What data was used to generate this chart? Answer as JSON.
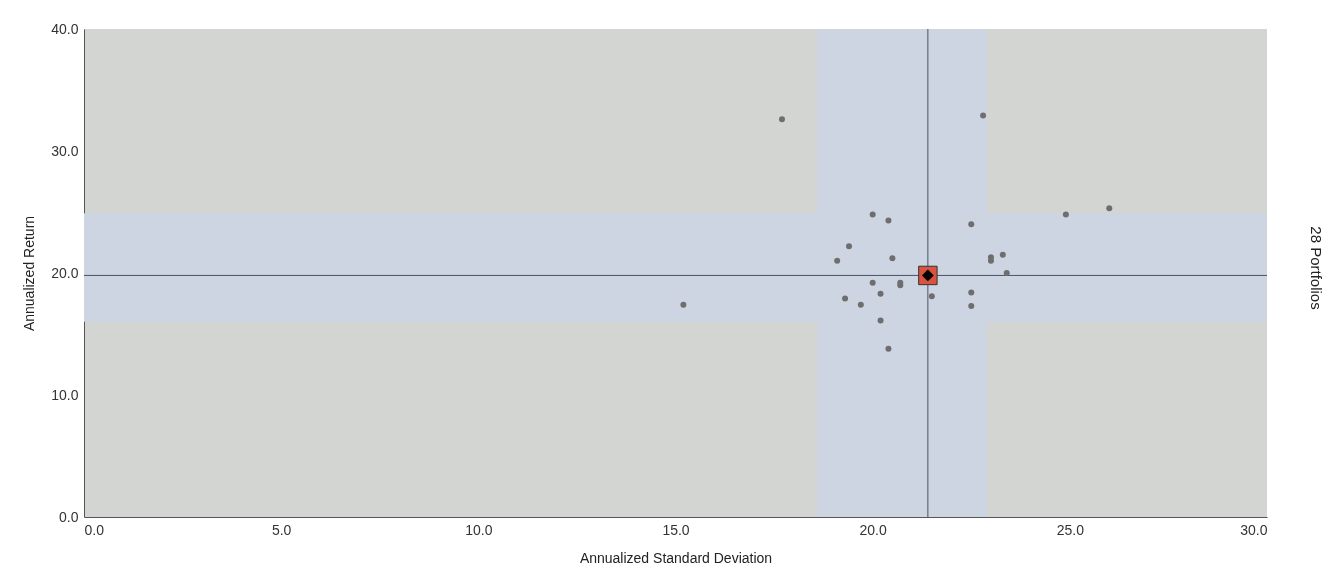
{
  "chart_data": {
    "type": "scatter",
    "xlabel": "Annualized Standard Deviation",
    "ylabel": "Annualized Return",
    "annotations": [
      "28 Portfolios"
    ],
    "xlim": [
      0,
      30
    ],
    "ylim": [
      0,
      40
    ],
    "xticks": [
      {
        "value": 0,
        "label": "0.0"
      },
      {
        "value": 5,
        "label": "5.0"
      },
      {
        "value": 10,
        "label": "10.0"
      },
      {
        "value": 15,
        "label": "15.0"
      },
      {
        "value": 20,
        "label": "20.0"
      },
      {
        "value": 25,
        "label": "25.0"
      },
      {
        "value": 30,
        "label": "30.0"
      }
    ],
    "yticks": [
      {
        "value": 0,
        "label": "0.0"
      },
      {
        "value": 10,
        "label": "10.0"
      },
      {
        "value": 20,
        "label": "20.0"
      },
      {
        "value": 30,
        "label": "30.0"
      },
      {
        "value": 40,
        "label": "40.0"
      }
    ],
    "grid": false,
    "bands": [
      {
        "axis": "x",
        "from": 18.6,
        "to": 22.9,
        "color": "#cdd4e2"
      },
      {
        "axis": "y",
        "from": 16.0,
        "to": 24.9,
        "color": "#cdd4e2"
      }
    ],
    "ref_lines": [
      {
        "axis": "x",
        "value": 21.4,
        "color": "#4a5266"
      },
      {
        "axis": "y",
        "value": 19.8,
        "color": "#4a5266"
      }
    ],
    "series": [
      {
        "color": "#6e6e6e",
        "marker": "circle",
        "x": [
          17.7,
          22.8,
          20.0,
          20.4,
          22.5,
          19.4,
          19.1,
          20.5,
          23.0,
          23.0,
          23.3,
          23.4,
          20.0,
          20.7,
          20.7,
          21.5,
          20.2,
          22.5,
          22.5,
          19.3,
          19.7,
          15.2,
          20.2,
          20.4,
          24.9,
          26.0
        ],
        "values": [
          32.6,
          32.9,
          24.8,
          24.3,
          24.0,
          22.2,
          21.0,
          21.2,
          21.3,
          21.0,
          21.5,
          20.0,
          19.2,
          19.0,
          19.2,
          18.1,
          18.3,
          18.4,
          17.3,
          17.9,
          17.4,
          17.4,
          16.1,
          13.8,
          24.8,
          25.3
        ]
      },
      {
        "color": "#d9533f",
        "marker": "square",
        "x": [
          21.4
        ],
        "values": [
          19.8
        ]
      },
      {
        "color": "#000000",
        "marker": "diamond",
        "x": [
          21.4
        ],
        "values": [
          19.8
        ]
      }
    ]
  }
}
